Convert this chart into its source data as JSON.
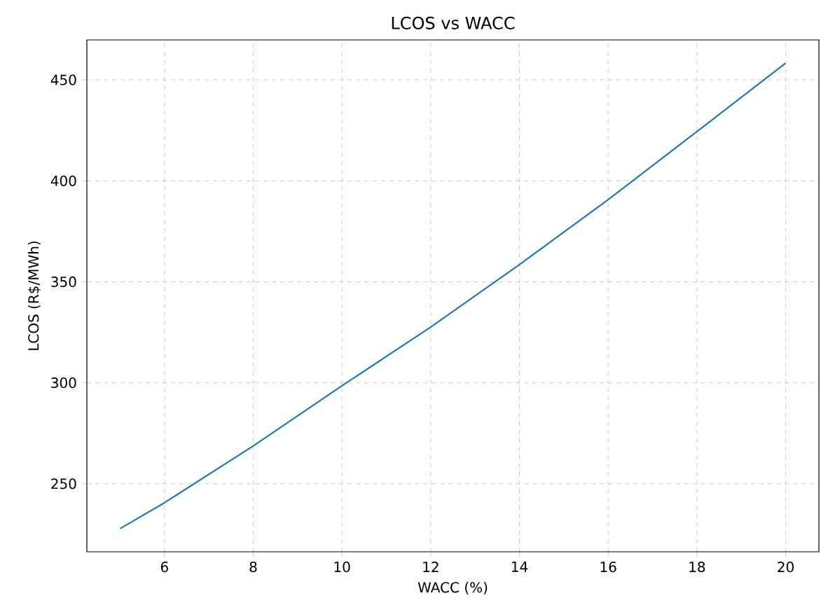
{
  "chart_data": {
    "type": "line",
    "title": "LCOS vs WACC",
    "xlabel": "WACC (%)",
    "ylabel": "LCOS (R$/MWh)",
    "x": [
      5,
      6,
      8,
      10,
      12,
      14,
      16,
      18,
      20
    ],
    "series": [
      {
        "color": "#1f77b4",
        "values": [
          227.8,
          240.6,
          268.7,
          298.5,
          327.6,
          358.5,
          390.7,
          424.4,
          458.3
        ]
      }
    ],
    "xlim": [
      4.25,
      20.75
    ],
    "ylim": [
      216.3,
      469.8
    ],
    "xticks": [
      6,
      8,
      10,
      12,
      14,
      16,
      18,
      20
    ],
    "yticks": [
      250,
      300,
      350,
      400,
      450
    ],
    "grid": true,
    "line_style": "solid",
    "marker": "none"
  }
}
